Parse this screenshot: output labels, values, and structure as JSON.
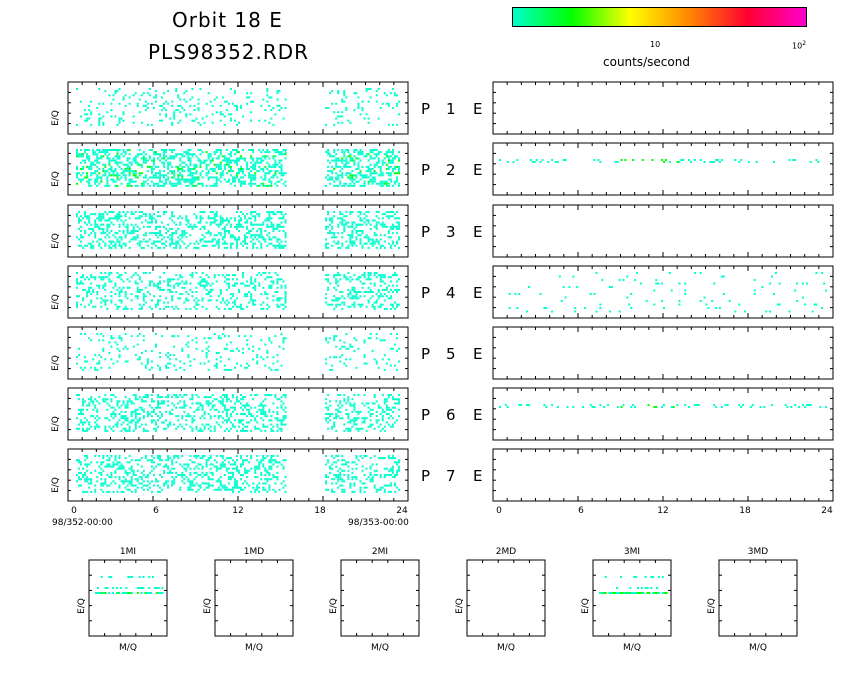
{
  "header": {
    "title_line1": "Orbit 18 E",
    "title_line2": "PLS98352.RDR"
  },
  "colorbar": {
    "tick_10": "10",
    "tick_100_base": "10",
    "tick_100_exp": "2",
    "unit_label": "counts/second",
    "colors": [
      "#00ffcc",
      "#00ff00",
      "#ffff00",
      "#ff8800",
      "#ff0033",
      "#ff00cc"
    ]
  },
  "chart_data": [
    {
      "type": "heatmap",
      "title": "",
      "panels": [
        {
          "left_label": "P 1 E",
          "detector": "P 1",
          "mode": "E"
        },
        {
          "left_label": "P 2 E",
          "detector": "P 2",
          "mode": "E"
        },
        {
          "left_label": "P 3 E",
          "detector": "P 3",
          "mode": "E"
        },
        {
          "left_label": "P 4 E",
          "detector": "P 4",
          "mode": "E"
        },
        {
          "left_label": "P 5 E",
          "detector": "P 5",
          "mode": "E"
        },
        {
          "left_label": "P 6 E",
          "detector": "P 6",
          "mode": "E"
        },
        {
          "left_label": "P 7 E",
          "detector": "P 7",
          "mode": "E"
        }
      ],
      "ylabel": "E/Q",
      "x_ticks": [
        "0",
        "6",
        "12",
        "18",
        "24"
      ],
      "x_range": [
        0,
        24
      ],
      "date_start": "98/352-00:00",
      "date_end": "98/353-00:00",
      "left_column_data_gap_hours": [
        15.5,
        18.3
      ],
      "colorscale": "log counts/second, 1 to 100"
    },
    {
      "type": "heatmap",
      "title": "",
      "mini_plots": [
        {
          "title": "1MI",
          "xlabel": "M/Q",
          "ylabel": "E/Q",
          "has_data": true
        },
        {
          "title": "1MD",
          "xlabel": "M/Q",
          "ylabel": "E/Q",
          "has_data": false
        },
        {
          "title": "2MI",
          "xlabel": "M/Q",
          "ylabel": "E/Q",
          "has_data": false
        },
        {
          "title": "2MD",
          "xlabel": "M/Q",
          "ylabel": "E/Q",
          "has_data": false
        },
        {
          "title": "3MI",
          "xlabel": "M/Q",
          "ylabel": "E/Q",
          "has_data": true
        },
        {
          "title": "3MD",
          "xlabel": "M/Q",
          "ylabel": "E/Q",
          "has_data": false
        }
      ]
    }
  ]
}
